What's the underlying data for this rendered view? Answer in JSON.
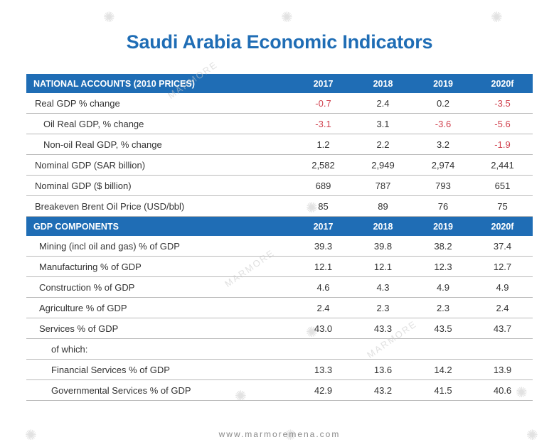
{
  "title": "Saudi Arabia Economic Indicators",
  "footer": "www.marmoremena.com",
  "watermark": "MARMORE",
  "colors": {
    "header_bg": "#1f6db5",
    "negative": "#d0414e",
    "text": "#333333"
  },
  "sections": [
    {
      "header": "NATIONAL ACCOUNTS (2010 PRICES)",
      "years": [
        "2017",
        "2018",
        "2019",
        "2020f"
      ],
      "rows": [
        {
          "label": "Real GDP % change",
          "values": [
            "-0.7",
            "2.4",
            "0.2",
            "-3.5"
          ]
        },
        {
          "label": "Oil Real GDP, % change",
          "values": [
            "-3.1",
            "3.1",
            "-3.6",
            "-5.6"
          ]
        },
        {
          "label": "Non-oil Real GDP, % change",
          "values": [
            "1.2",
            "2.2",
            "3.2",
            "-1.9"
          ]
        },
        {
          "label": "Nominal GDP (SAR billion)",
          "values": [
            "2,582",
            "2,949",
            "2,974",
            "2,441"
          ]
        },
        {
          "label": "Nominal GDP ($ billion)",
          "values": [
            "689",
            "787",
            "793",
            "651"
          ]
        },
        {
          "label": "Breakeven Brent Oil Price (USD/bbl)",
          "values": [
            "85",
            "89",
            "76",
            "75"
          ]
        }
      ]
    },
    {
      "header": "GDP COMPONENTS",
      "years": [
        "2017",
        "2018",
        "2019",
        "2020f"
      ],
      "rows": [
        {
          "label": "Mining (incl oil and gas)  % of GDP",
          "values": [
            "39.3",
            "39.8",
            "38.2",
            "37.4"
          ]
        },
        {
          "label": "Manufacturing  % of GDP",
          "values": [
            "12.1",
            "12.1",
            "12.3",
            "12.7"
          ]
        },
        {
          "label": "Construction  % of GDP",
          "values": [
            "4.6",
            "4.3",
            "4.9",
            "4.9"
          ]
        },
        {
          "label": "Agriculture  % of GDP",
          "values": [
            "2.4",
            "2.3",
            "2.3",
            "2.4"
          ]
        },
        {
          "label": "Services  % of GDP",
          "values": [
            "43.0",
            "43.3",
            "43.5",
            "43.7"
          ]
        },
        {
          "label": "of which:",
          "values": [
            "",
            "",
            "",
            ""
          ]
        },
        {
          "label": "Financial Services  % of GDP",
          "values": [
            "13.3",
            "13.6",
            "14.2",
            "13.9"
          ]
        },
        {
          "label": "Governmental Services  % of GDP",
          "values": [
            "42.9",
            "43.2",
            "41.5",
            "40.6"
          ]
        }
      ]
    }
  ]
}
